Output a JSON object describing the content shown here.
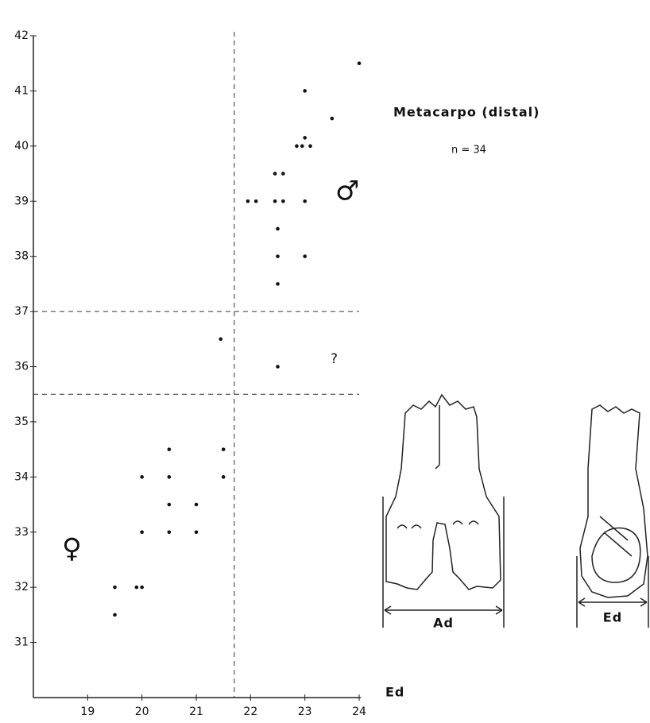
{
  "chart_data": {
    "type": "scatter",
    "title": "Metacarpo  (distal)",
    "subtitle": "n = 34",
    "xlabel": "Ed",
    "annotations": [
      "?",
      "♂",
      "♀"
    ],
    "diagram_labels": [
      "Ad",
      "Ed"
    ],
    "color": "#111111",
    "x": [
      24.0,
      23.0,
      23.5,
      23.0,
      22.85,
      22.95,
      23.1,
      22.45,
      22.6,
      21.95,
      22.1,
      22.45,
      22.6,
      23.0,
      22.5,
      22.5,
      23.0,
      22.5,
      21.45,
      22.5,
      20.5,
      21.5,
      20.0,
      20.5,
      21.5,
      20.5,
      21.0,
      20.0,
      20.5,
      21.0,
      19.5,
      19.9,
      20.0,
      19.5
    ],
    "values": [
      41.5,
      41.0,
      40.5,
      40.15,
      40.0,
      40.0,
      40.0,
      39.5,
      39.5,
      39.0,
      39.0,
      39.0,
      39.0,
      39.0,
      38.5,
      38.0,
      38.0,
      37.5,
      36.5,
      36.0,
      34.5,
      34.5,
      34.0,
      34.0,
      34.0,
      33.5,
      33.5,
      33.0,
      33.0,
      33.0,
      32.0,
      32.0,
      32.0,
      31.5
    ],
    "xlim": [
      18,
      24
    ],
    "ylim": [
      30,
      42
    ],
    "xticks": [
      19,
      20,
      21,
      22,
      23,
      24
    ],
    "yticks": [
      31,
      32,
      33,
      34,
      35,
      36,
      37,
      38,
      39,
      40,
      41,
      42
    ],
    "reference_x": [
      21.7
    ],
    "reference_y": [
      37,
      35.5
    ]
  }
}
